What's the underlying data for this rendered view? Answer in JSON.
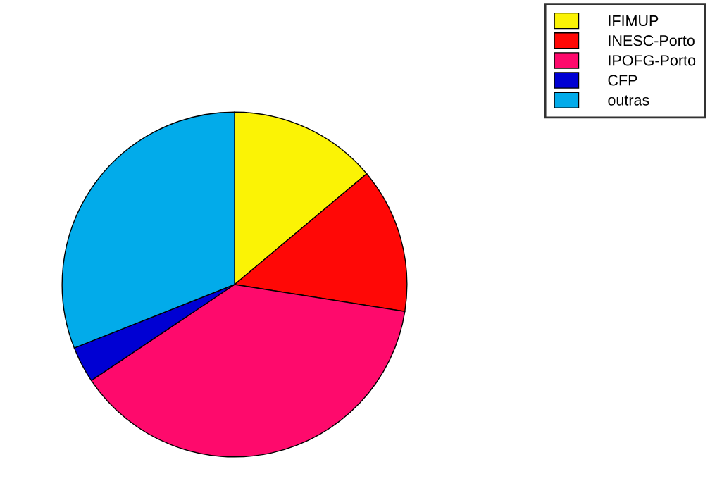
{
  "chart_data": {
    "type": "pie",
    "categories": [
      "IFIMUP",
      "INESC-Porto",
      "IPOFG-Porto",
      "CFP",
      "outras"
    ],
    "values": [
      13.9,
      13.6,
      38.1,
      3.4,
      31.0
    ],
    "colors": [
      "#fbf305",
      "#ff0806",
      "#fe0a6c",
      "#0000d3",
      "#02abea"
    ],
    "legend": "top right"
  }
}
